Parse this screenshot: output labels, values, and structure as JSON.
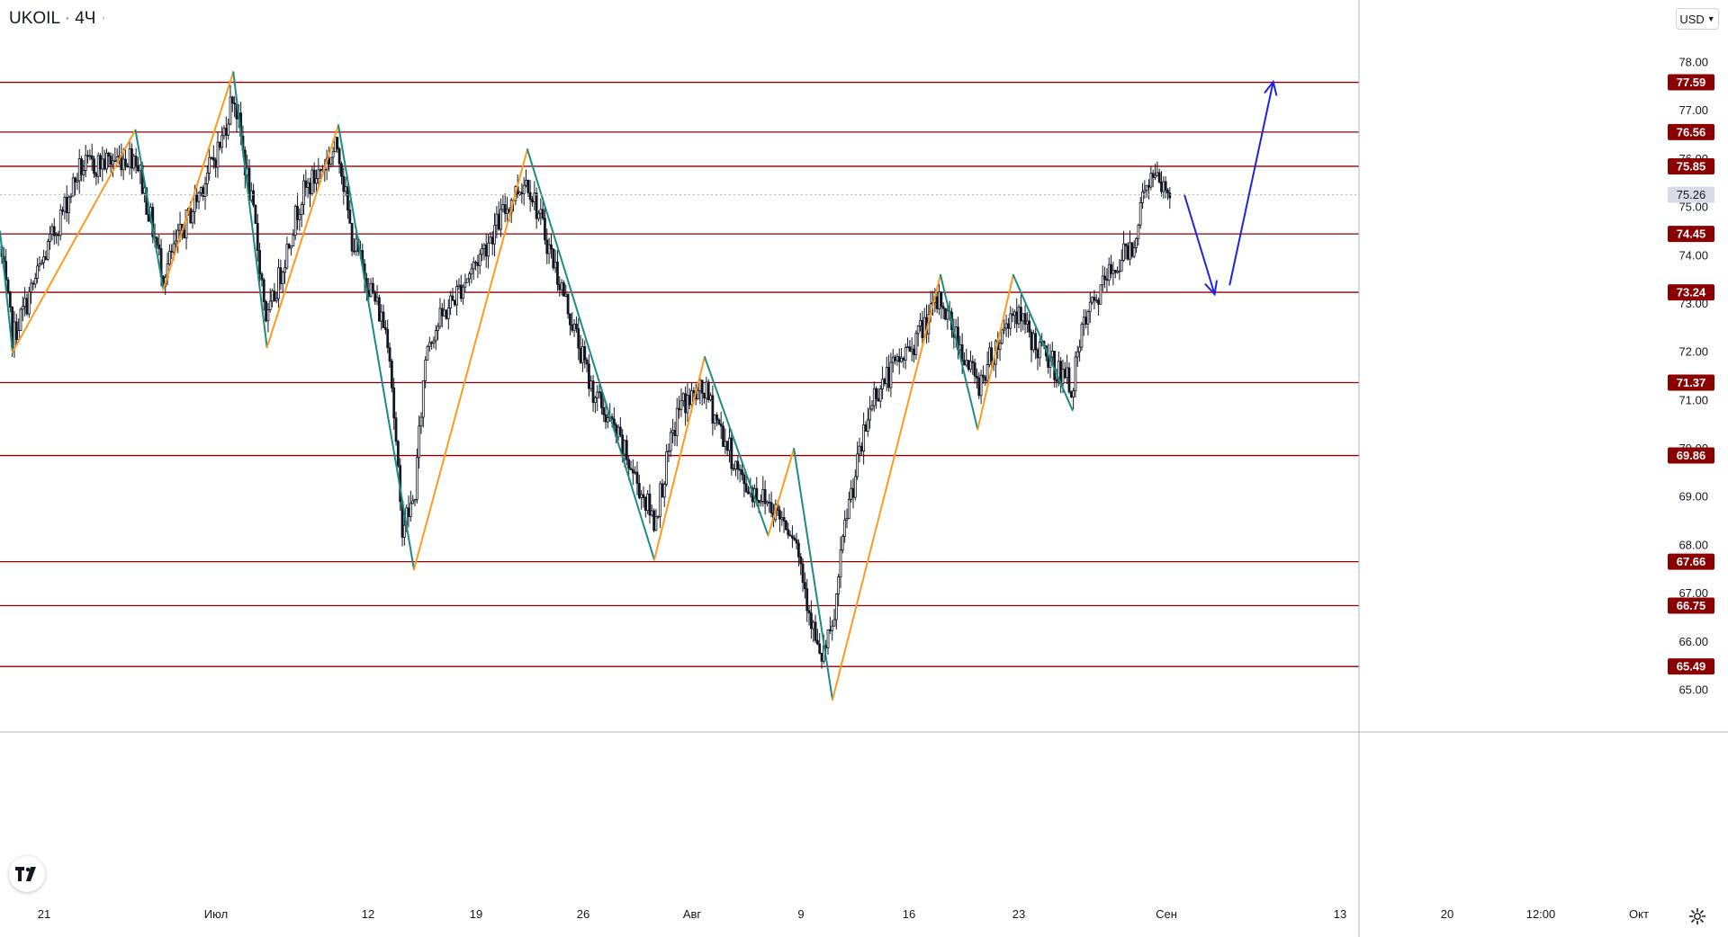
{
  "header": {
    "symbol": "UKOIL",
    "separator": "·",
    "interval": "4Ч",
    "extra_dot": "·"
  },
  "currency_button": {
    "label": "USD"
  },
  "icons": {
    "currency_dropdown": "chevron-down-icon",
    "logo": "tradingview-logo-icon",
    "settings": "gear-icon"
  },
  "colors": {
    "level_line": "#8b0000",
    "level_label_bg": "#8b0000",
    "current_price_bg": "#d9dce3",
    "zigzag_up": "#ff9a1f",
    "zigzag_down": "#1b8c80",
    "forecast_arrow": "#1f22e0",
    "candle": "#131722"
  },
  "chart_data": {
    "type": "candlestick",
    "title": "",
    "y_axis": {
      "ylim": [
        64.45,
        78.55
      ],
      "tick_labels": [
        "78.00",
        "77.00",
        "76.00",
        "75.00",
        "74.00",
        "73.00",
        "72.00",
        "71.00",
        "70.00",
        "69.00",
        "68.00",
        "67.00",
        "66.00",
        "65.00"
      ]
    },
    "x_axis": {
      "tick_labels": [
        "21",
        "Июл",
        "12",
        "19",
        "26",
        "Авг",
        "9",
        "16",
        "23",
        "Сен",
        "13",
        "20",
        "12:00",
        "Окт"
      ]
    },
    "current_price": {
      "value": 75.26,
      "label": "75.26"
    },
    "price_levels": [
      {
        "value": 77.59,
        "label": "77.59"
      },
      {
        "value": 76.56,
        "label": "76.56"
      },
      {
        "value": 75.85,
        "label": "75.85"
      },
      {
        "value": 74.45,
        "label": "74.45"
      },
      {
        "value": 73.24,
        "label": "73.24"
      },
      {
        "value": 71.37,
        "label": "71.37"
      },
      {
        "value": 69.86,
        "label": "69.86"
      },
      {
        "value": 67.66,
        "label": "67.66"
      },
      {
        "value": 66.75,
        "label": "66.75"
      },
      {
        "value": 65.49,
        "label": "65.49"
      }
    ],
    "zigzag_pivots": [
      {
        "date": "Jun 18",
        "price": 74.5
      },
      {
        "date": "Jun 19",
        "price": 72.0
      },
      {
        "date": "Jun 28",
        "price": 76.6
      },
      {
        "date": "Jun 30",
        "price": 73.3
      },
      {
        "date": "Jul 6",
        "price": 77.8
      },
      {
        "date": "Jul 9",
        "price": 72.1
      },
      {
        "date": "Jul 15",
        "price": 76.7
      },
      {
        "date": "Jul 21",
        "price": 67.5
      },
      {
        "date": "Jul 30",
        "price": 76.2
      },
      {
        "date": "Aug 9",
        "price": 67.7
      },
      {
        "date": "Aug 13",
        "price": 71.9
      },
      {
        "date": "Aug 18",
        "price": 68.2
      },
      {
        "date": "Aug 20",
        "price": 70.0
      },
      {
        "date": "Aug 23",
        "price": 64.8
      },
      {
        "date": "Aug 31",
        "price": 73.6
      },
      {
        "date": "Sep 3",
        "price": 70.4
      },
      {
        "date": "Sep 6",
        "price": 73.6
      },
      {
        "date": "Sep 11",
        "price": 70.8
      }
    ],
    "forecast_path": [
      {
        "date": "Sep 20",
        "price": 75.26
      },
      {
        "date": "Sep 22",
        "price": 73.2
      },
      {
        "date": "Sep 23",
        "price": 73.4
      },
      {
        "date": "Sep 26",
        "price": 77.6
      }
    ],
    "candles_anchor": [
      {
        "date": "Jun 18",
        "close": 74.2
      },
      {
        "date": "Jun 19",
        "close": 72.3
      },
      {
        "date": "Jun 24",
        "close": 75.8
      },
      {
        "date": "Jun 28",
        "close": 76.1
      },
      {
        "date": "Jun 30",
        "close": 73.6
      },
      {
        "date": "Jul 5",
        "close": 76.4
      },
      {
        "date": "Jul 6",
        "close": 77.4
      },
      {
        "date": "Jul 8",
        "close": 74.5
      },
      {
        "date": "Jul 9",
        "close": 72.6
      },
      {
        "date": "Jul 12",
        "close": 75.2
      },
      {
        "date": "Jul 15",
        "close": 76.3
      },
      {
        "date": "Jul 16",
        "close": 74.4
      },
      {
        "date": "Jul 19",
        "close": 72.3
      },
      {
        "date": "Jul 20",
        "close": 68.4
      },
      {
        "date": "Jul 21",
        "close": 68.9
      },
      {
        "date": "Jul 22",
        "close": 72.2
      },
      {
        "date": "Jul 26",
        "close": 73.9
      },
      {
        "date": "Jul 29",
        "close": 75.3
      },
      {
        "date": "Jul 30",
        "close": 75.6
      },
      {
        "date": "Aug 2",
        "close": 73.1
      },
      {
        "date": "Aug 4",
        "close": 71.3
      },
      {
        "date": "Aug 6",
        "close": 70.3
      },
      {
        "date": "Aug 9",
        "close": 68.5
      },
      {
        "date": "Aug 11",
        "close": 70.9
      },
      {
        "date": "Aug 13",
        "close": 71.2
      },
      {
        "date": "Aug 16",
        "close": 69.3
      },
      {
        "date": "Aug 18",
        "close": 68.9
      },
      {
        "date": "Aug 20",
        "close": 68.3
      },
      {
        "date": "Aug 22",
        "close": 65.6
      },
      {
        "date": "Aug 23",
        "close": 66.2
      },
      {
        "date": "Aug 24",
        "close": 68.6
      },
      {
        "date": "Aug 26",
        "close": 71.1
      },
      {
        "date": "Aug 29",
        "close": 72.2
      },
      {
        "date": "Aug 31",
        "close": 73.1
      },
      {
        "date": "Sep 3",
        "close": 71.3
      },
      {
        "date": "Sep 6",
        "close": 72.9
      },
      {
        "date": "Sep 8",
        "close": 72.1
      },
      {
        "date": "Sep 11",
        "close": 71.3
      },
      {
        "date": "Sep 12",
        "close": 72.6
      },
      {
        "date": "Sep 14",
        "close": 73.6
      },
      {
        "date": "Sep 16",
        "close": 74.3
      },
      {
        "date": "Sep 17",
        "close": 75.6
      },
      {
        "date": "Sep 18",
        "close": 75.5
      },
      {
        "date": "Sep 19",
        "close": 75.26
      }
    ],
    "grid": false,
    "legend": "none"
  }
}
